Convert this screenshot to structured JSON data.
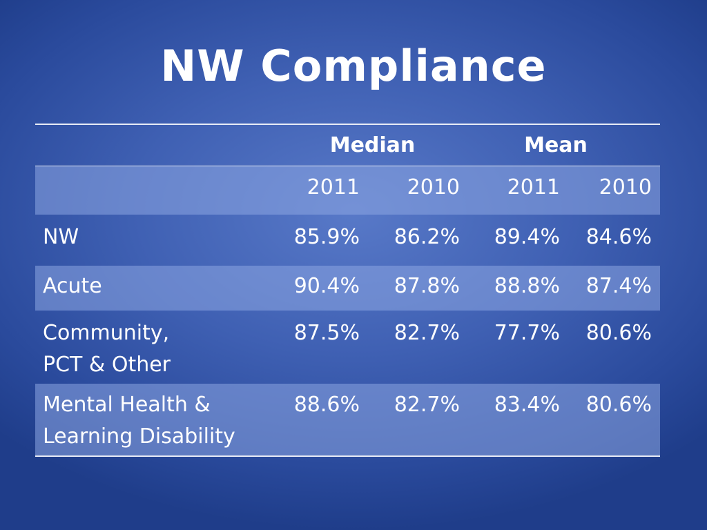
{
  "slide": {
    "title": "NW Compliance"
  },
  "table": {
    "groups": {
      "median": "Median",
      "mean": "Mean"
    },
    "years": [
      "2011",
      "2010",
      "2011",
      "2010"
    ],
    "rows": [
      {
        "label_line1": "NW",
        "label_line2": "",
        "values": [
          "85.9%",
          "86.2%",
          "89.4%",
          "84.6%"
        ]
      },
      {
        "label_line1": "Acute",
        "label_line2": "",
        "values": [
          "90.4%",
          "87.8%",
          "88.8%",
          "87.4%"
        ]
      },
      {
        "label_line1": "Community,",
        "label_line2": "PCT & Other",
        "values": [
          "87.5%",
          "82.7%",
          "77.7%",
          "80.6%"
        ]
      },
      {
        "label_line1": "Mental Health &",
        "label_line2": "Learning Disability",
        "values": [
          "88.6%",
          "82.7%",
          "83.4%",
          "80.6%"
        ]
      }
    ]
  }
}
